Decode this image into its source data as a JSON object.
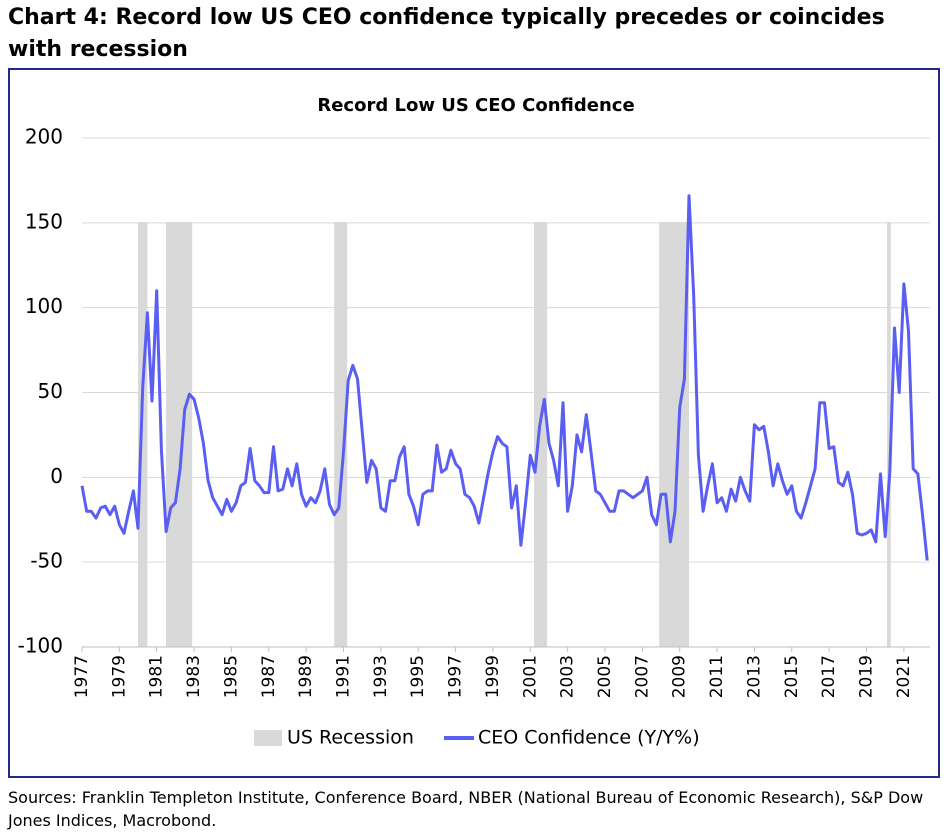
{
  "header": {
    "title": "Chart 4: Record low US CEO confidence typically precedes or coincides with recession"
  },
  "chart_data": {
    "type": "line",
    "title": "Record Low US CEO Confidence",
    "x": [
      1977,
      1977.25,
      1977.5,
      1977.75,
      1978,
      1978.25,
      1978.5,
      1978.75,
      1979,
      1979.25,
      1979.5,
      1979.75,
      1980,
      1980.25,
      1980.5,
      1980.75,
      1981,
      1981.25,
      1981.5,
      1981.75,
      1982,
      1982.25,
      1982.5,
      1982.75,
      1983,
      1983.25,
      1983.5,
      1983.75,
      1984,
      1984.25,
      1984.5,
      1984.75,
      1985,
      1985.25,
      1985.5,
      1985.75,
      1986,
      1986.25,
      1986.5,
      1986.75,
      1987,
      1987.25,
      1987.5,
      1987.75,
      1988,
      1988.25,
      1988.5,
      1988.75,
      1989,
      1989.25,
      1989.5,
      1989.75,
      1990,
      1990.25,
      1990.5,
      1990.75,
      1991,
      1991.25,
      1991.5,
      1991.75,
      1992,
      1992.25,
      1992.5,
      1992.75,
      1993,
      1993.25,
      1993.5,
      1993.75,
      1994,
      1994.25,
      1994.5,
      1994.75,
      1995,
      1995.25,
      1995.5,
      1995.75,
      1996,
      1996.25,
      1996.5,
      1996.75,
      1997,
      1997.25,
      1997.5,
      1997.75,
      1998,
      1998.25,
      1998.5,
      1998.75,
      1999,
      1999.25,
      1999.5,
      1999.75,
      2000,
      2000.25,
      2000.5,
      2000.75,
      2001,
      2001.25,
      2001.5,
      2001.75,
      2002,
      2002.25,
      2002.5,
      2002.75,
      2003,
      2003.25,
      2003.5,
      2003.75,
      2004,
      2004.25,
      2004.5,
      2004.75,
      2005,
      2005.25,
      2005.5,
      2005.75,
      2006,
      2006.25,
      2006.5,
      2006.75,
      2007,
      2007.25,
      2007.5,
      2007.75,
      2008,
      2008.25,
      2008.5,
      2008.75,
      2009,
      2009.25,
      2009.5,
      2009.75,
      2010,
      2010.25,
      2010.5,
      2010.75,
      2011,
      2011.25,
      2011.5,
      2011.75,
      2012,
      2012.25,
      2012.5,
      2012.75,
      2013,
      2013.25,
      2013.5,
      2013.75,
      2014,
      2014.25,
      2014.5,
      2014.75,
      2015,
      2015.25,
      2015.5,
      2015.75,
      2016,
      2016.25,
      2016.5,
      2016.75,
      2017,
      2017.25,
      2017.5,
      2017.75,
      2018,
      2018.25,
      2018.5,
      2018.75,
      2019,
      2019.25,
      2019.5,
      2019.75,
      2020,
      2020.25,
      2020.5,
      2020.75,
      2021,
      2021.25,
      2021.5,
      2021.75,
      2022,
      2022.25
    ],
    "series": [
      {
        "name": "CEO Confidence (Y/Y%)",
        "color": "#5b5ef2",
        "values": [
          -5,
          -20,
          -20,
          -24,
          -18,
          -17,
          -22,
          -17,
          -28,
          -33,
          -20,
          -8,
          -30,
          53,
          97,
          45,
          110,
          16,
          -32,
          -18,
          -15,
          5,
          40,
          49,
          46,
          35,
          20,
          -2,
          -12,
          -17,
          -22,
          -13,
          -20,
          -15,
          -5,
          -3,
          17,
          -2,
          -5,
          -9,
          -9,
          18,
          -8,
          -7,
          5,
          -5,
          8,
          -10,
          -17,
          -12,
          -15,
          -8,
          5,
          -16,
          -22,
          -18,
          15,
          57,
          66,
          58,
          27,
          -3,
          10,
          5,
          -18,
          -20,
          -2,
          -2,
          12,
          18,
          -10,
          -17,
          -28,
          -10,
          -8,
          -8,
          19,
          3,
          5,
          16,
          8,
          5,
          -10,
          -12,
          -17,
          -27,
          -12,
          3,
          15,
          24,
          20,
          18,
          -18,
          -5,
          -40,
          -15,
          13,
          3,
          30,
          46,
          20,
          10,
          -5,
          44,
          -20,
          -5,
          25,
          15,
          37,
          15,
          -8,
          -10,
          -15,
          -20,
          -20,
          -8,
          -8,
          -10,
          -12,
          -10,
          -8,
          0,
          -22,
          -28,
          -10,
          -10,
          -38,
          -20,
          41,
          58,
          166,
          107,
          13,
          -20,
          -5,
          8,
          -15,
          -12,
          -20,
          -7,
          -14,
          0,
          -8,
          -14,
          31,
          28,
          30,
          15,
          -5,
          8,
          -2,
          -10,
          -5,
          -20,
          -24,
          -15,
          -5,
          5,
          44,
          44,
          17,
          18,
          -3,
          -5,
          3,
          -10,
          -33,
          -34,
          -33,
          -31,
          -38,
          2,
          -35,
          3,
          88,
          50,
          114,
          86,
          5,
          2,
          -22,
          -49
        ]
      }
    ],
    "recessions": {
      "name": "US Recession",
      "color": "#d9d9d9",
      "spans": [
        [
          1980.0,
          1980.5
        ],
        [
          1981.5,
          1982.9
        ],
        [
          1990.5,
          1991.2
        ],
        [
          2001.2,
          2001.9
        ],
        [
          2007.9,
          2009.5
        ],
        [
          2020.1,
          2020.3
        ]
      ]
    },
    "xlim": [
      1977,
      2022.4
    ],
    "xticks": [
      1977,
      1979,
      1981,
      1983,
      1985,
      1987,
      1989,
      1991,
      1993,
      1995,
      1997,
      1999,
      2001,
      2003,
      2005,
      2007,
      2009,
      2011,
      2013,
      2015,
      2017,
      2019,
      2021
    ],
    "ylim": [
      -100,
      200
    ],
    "yticks": [
      -100,
      -50,
      0,
      50,
      100,
      150,
      200
    ],
    "grid": true,
    "legend": "bottom"
  },
  "footer": {
    "source": "Sources: Franklin Templeton Institute, Conference Board, NBER (National Bureau of Economic Research), S&P Dow Jones Indices, Macrobond."
  }
}
